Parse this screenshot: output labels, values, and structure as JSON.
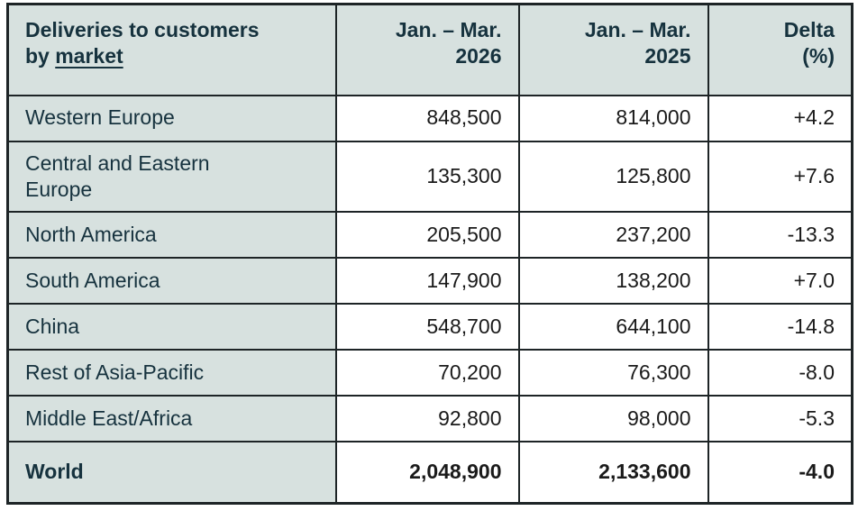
{
  "colors": {
    "header_bg": "#d7e1df",
    "label_text": "#16323e",
    "number_text": "#1a1a1a",
    "border": "#1d2426",
    "cell_bg": "#ffffff"
  },
  "table": {
    "header": {
      "col1": {
        "line1": "Deliveries to customers",
        "line2_prefix": "by ",
        "line2_underline": "market"
      },
      "col2": {
        "line1": "Jan. – Mar.",
        "line2": "2026"
      },
      "col3": {
        "line1": "Jan. – Mar.",
        "line2": "2025"
      },
      "col4": {
        "line1": "Delta",
        "line2": "(%)"
      }
    },
    "rows": [
      {
        "market": "Western Europe",
        "y2026": "848,500",
        "y2025": "814,000",
        "delta": "+4.2"
      },
      {
        "market": "Central and Eastern Europe",
        "y2026": "135,300",
        "y2025": "125,800",
        "delta": "+7.6"
      },
      {
        "market": "North America",
        "y2026": "205,500",
        "y2025": "237,200",
        "delta": "-13.3"
      },
      {
        "market": "South America",
        "y2026": "147,900",
        "y2025": "138,200",
        "delta": "+7.0"
      },
      {
        "market": "China",
        "y2026": "548,700",
        "y2025": "644,100",
        "delta": "-14.8"
      },
      {
        "market": "Rest of Asia-Pacific",
        "y2026": "70,200",
        "y2025": "76,300",
        "delta": "-8.0"
      },
      {
        "market": "Middle East/Africa",
        "y2026": "92,800",
        "y2025": "98,000",
        "delta": "-5.3"
      }
    ],
    "total": {
      "market": "World",
      "y2026": "2,048,900",
      "y2025": "2,133,600",
      "delta": "-4.0"
    }
  },
  "chart_data": {
    "type": "table",
    "title": "Deliveries to customers by market",
    "columns": [
      "Deliveries to customers by market",
      "Jan. – Mar. 2026",
      "Jan. – Mar. 2025",
      "Delta (%)"
    ],
    "rows": [
      {
        "market": "Western Europe",
        "jan_mar_2026": 848500,
        "jan_mar_2025": 814000,
        "delta_pct": 4.2
      },
      {
        "market": "Central and Eastern Europe",
        "jan_mar_2026": 135300,
        "jan_mar_2025": 125800,
        "delta_pct": 7.6
      },
      {
        "market": "North America",
        "jan_mar_2026": 205500,
        "jan_mar_2025": 237200,
        "delta_pct": -13.3
      },
      {
        "market": "South America",
        "jan_mar_2026": 147900,
        "jan_mar_2025": 138200,
        "delta_pct": 7.0
      },
      {
        "market": "China",
        "jan_mar_2026": 548700,
        "jan_mar_2025": 644100,
        "delta_pct": -14.8
      },
      {
        "market": "Rest of Asia-Pacific",
        "jan_mar_2026": 70200,
        "jan_mar_2025": 76300,
        "delta_pct": -8.0
      },
      {
        "market": "Middle East/Africa",
        "jan_mar_2026": 92800,
        "jan_mar_2025": 98000,
        "delta_pct": -5.3
      },
      {
        "market": "World",
        "jan_mar_2026": 2048900,
        "jan_mar_2025": 2133600,
        "delta_pct": -4.0
      }
    ]
  }
}
